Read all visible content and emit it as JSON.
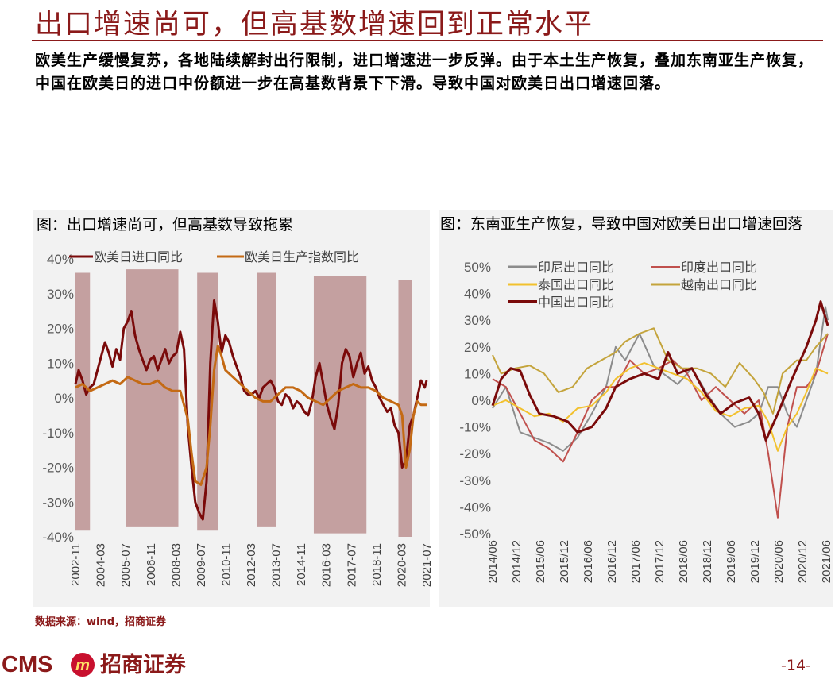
{
  "page": {
    "title": "出口增速尚可，但高基数增速回到正常水平",
    "summary": "欧美生产缓慢复苏，各地陆续解封出行限制，进口增速进一步反弹。由于本土生产恢复，叠加东南亚生产恢复，中国在欧美日的进口中份额进一步在高基数背景下下滑。导致中国对欧美日出口增速回落。",
    "source": "数据来源：wind，招商证券",
    "page_number": "-14-",
    "logo_text": "CMS",
    "logo_cn": "招商证券",
    "logo_badge": "m"
  },
  "colors": {
    "brand": "#8b1a1a",
    "panel_bg": "#f2f2f2",
    "shade": "#c4a0a0",
    "china_line": "#7a0a0a",
    "orange_line": "#c46a14",
    "indonesia": "#8c8c8c",
    "india": "#c0504d",
    "thailand": "#f2c12e",
    "vietnam": "#c4a43c"
  },
  "chart_data": [
    {
      "type": "line",
      "title": "图：出口增速尚可，但高基数导致拖累",
      "y_ticks": [
        "40%",
        "30%",
        "20%",
        "10%",
        "0%",
        "-10%",
        "-20%",
        "-30%",
        "-40%"
      ],
      "ylim": [
        -40,
        40
      ],
      "xlim": [
        2002.83,
        2021.5
      ],
      "x_ticks": [
        "2002-11",
        "2004-03",
        "2005-07",
        "2006-11",
        "2008-03",
        "2009-07",
        "2010-11",
        "2012-03",
        "2013-07",
        "2014-11",
        "2016-03",
        "2017-07",
        "2018-11",
        "2020-03",
        "2021-07"
      ],
      "shaded_periods": [
        [
          2002.83,
          2003.6,
          -38,
          36
        ],
        [
          2005.5,
          2008.3,
          -37,
          37
        ],
        [
          2009.3,
          2010.4,
          -38,
          36
        ],
        [
          2012.5,
          2013.5,
          -37,
          36
        ],
        [
          2015.5,
          2018.3,
          -39,
          35
        ],
        [
          2020.0,
          2020.7,
          -40,
          34
        ]
      ],
      "series": [
        {
          "name": "欧美日进口同比",
          "x": [
            2002.83,
            2003.0,
            2003.2,
            2003.4,
            2003.6,
            2003.8,
            2004.0,
            2004.2,
            2004.4,
            2004.6,
            2004.8,
            2005.0,
            2005.2,
            2005.4,
            2005.6,
            2005.8,
            2006.0,
            2006.2,
            2006.4,
            2006.6,
            2006.8,
            2007.0,
            2007.2,
            2007.4,
            2007.6,
            2007.8,
            2008.0,
            2008.2,
            2008.4,
            2008.6,
            2008.8,
            2009.0,
            2009.2,
            2009.4,
            2009.6,
            2009.8,
            2010.0,
            2010.2,
            2010.4,
            2010.6,
            2010.8,
            2011.0,
            2011.2,
            2011.4,
            2011.6,
            2011.8,
            2012.0,
            2012.2,
            2012.4,
            2012.6,
            2012.8,
            2013.0,
            2013.2,
            2013.4,
            2013.6,
            2013.8,
            2014.0,
            2014.2,
            2014.4,
            2014.6,
            2014.8,
            2015.0,
            2015.2,
            2015.4,
            2015.6,
            2015.8,
            2016.0,
            2016.2,
            2016.4,
            2016.6,
            2016.8,
            2017.0,
            2017.2,
            2017.4,
            2017.6,
            2017.8,
            2018.0,
            2018.2,
            2018.4,
            2018.6,
            2018.8,
            2019.0,
            2019.2,
            2019.4,
            2019.6,
            2019.8,
            2020.0,
            2020.2,
            2020.4,
            2020.6,
            2020.8,
            2021.0,
            2021.2,
            2021.4,
            2021.5
          ],
          "values": [
            4,
            8,
            5,
            1,
            3,
            4,
            8,
            12,
            16,
            13,
            9,
            14,
            11,
            20,
            22,
            25,
            18,
            14,
            11,
            8,
            11,
            12,
            8,
            11,
            14,
            10,
            12,
            13,
            19,
            14,
            -8,
            -20,
            -30,
            -33,
            -35,
            -24,
            10,
            28,
            22,
            13,
            18,
            16,
            12,
            9,
            6,
            2,
            1,
            1,
            2,
            0,
            3,
            4,
            5,
            3,
            -1,
            -2,
            1,
            0,
            -3,
            -1,
            -2,
            -4,
            -5,
            -1,
            6,
            10,
            4,
            -2,
            -6,
            -9,
            -2,
            10,
            14,
            12,
            6,
            10,
            13,
            7,
            9,
            5,
            3,
            0,
            -2,
            -4,
            -3,
            -8,
            -10,
            -20,
            -18,
            -8,
            -5,
            0,
            5,
            3,
            5
          ]
        },
        {
          "name": "欧美日生产指数同比",
          "x": [
            2002.83,
            2003.2,
            2003.6,
            2004.0,
            2004.4,
            2004.8,
            2005.2,
            2005.6,
            2006.0,
            2006.4,
            2006.8,
            2007.2,
            2007.6,
            2008.0,
            2008.4,
            2008.8,
            2009.0,
            2009.2,
            2009.5,
            2009.8,
            2010.0,
            2010.2,
            2010.4,
            2010.6,
            2010.8,
            2011.2,
            2011.6,
            2012.0,
            2012.4,
            2012.8,
            2013.2,
            2013.6,
            2014.0,
            2014.4,
            2014.8,
            2015.2,
            2015.6,
            2016.0,
            2016.4,
            2016.8,
            2017.2,
            2017.6,
            2018.0,
            2018.4,
            2018.8,
            2019.2,
            2019.6,
            2020.0,
            2020.2,
            2020.4,
            2020.6,
            2020.8,
            2021.0,
            2021.2,
            2021.5
          ],
          "values": [
            3,
            4,
            2,
            3,
            4,
            5,
            4,
            6,
            5,
            4,
            4,
            5,
            3,
            2,
            2,
            -6,
            -16,
            -24,
            -25,
            -20,
            -8,
            8,
            15,
            12,
            8,
            6,
            4,
            2,
            0,
            -1,
            -1,
            1,
            3,
            3,
            2,
            0,
            -1,
            -2,
            0,
            2,
            3,
            4,
            3,
            3,
            2,
            0,
            -1,
            -2,
            -5,
            -20,
            -15,
            -5,
            -1,
            -2,
            -2
          ]
        }
      ]
    },
    {
      "type": "line",
      "title": "图：东南亚生产恢复，导致中国对欧美日出口增速回落",
      "y_ticks": [
        "50%",
        "40%",
        "30%",
        "20%",
        "10%",
        "0%",
        "-10%",
        "-20%",
        "-30%",
        "-40%",
        "-50%"
      ],
      "ylim": [
        -50,
        50
      ],
      "xlim": [
        2014.42,
        2021.45
      ],
      "x_ticks": [
        "2014/06",
        "2014/12",
        "2015/06",
        "2015/12",
        "2016/06",
        "2016/12",
        "2017/06",
        "2017/12",
        "2018/06",
        "2018/12",
        "2019/06",
        "2019/12",
        "2020/06",
        "2020/12",
        "2021/06"
      ],
      "series": [
        {
          "name": "印尼出口同比",
          "x": [
            2014.42,
            2014.7,
            2015.0,
            2015.3,
            2015.6,
            2015.9,
            2016.2,
            2016.5,
            2016.8,
            2017.0,
            2017.2,
            2017.5,
            2017.8,
            2018.0,
            2018.3,
            2018.6,
            2018.9,
            2019.2,
            2019.5,
            2019.8,
            2020.0,
            2020.2,
            2020.4,
            2020.6,
            2020.8,
            2021.0,
            2021.2,
            2021.4,
            2021.45
          ],
          "values": [
            -3,
            5,
            -12,
            -14,
            -16,
            -19,
            -14,
            -5,
            5,
            20,
            15,
            25,
            13,
            10,
            6,
            12,
            3,
            -5,
            -10,
            -8,
            -5,
            5,
            5,
            -5,
            -10,
            0,
            10,
            35,
            30
          ]
        },
        {
          "name": "印度出口同比",
          "x": [
            2014.42,
            2014.7,
            2015.0,
            2015.3,
            2015.6,
            2015.9,
            2016.2,
            2016.5,
            2016.8,
            2017.0,
            2017.3,
            2017.6,
            2017.9,
            2018.2,
            2018.5,
            2018.8,
            2019.1,
            2019.4,
            2019.7,
            2020.0,
            2020.2,
            2020.4,
            2020.6,
            2020.8,
            2021.0,
            2021.2,
            2021.45
          ],
          "values": [
            8,
            5,
            -5,
            -15,
            -18,
            -23,
            -12,
            0,
            5,
            5,
            15,
            10,
            12,
            15,
            10,
            0,
            5,
            0,
            -5,
            0,
            -20,
            -44,
            -10,
            5,
            5,
            10,
            25
          ]
        },
        {
          "name": "泰国出口同比",
          "x": [
            2014.42,
            2014.7,
            2015.0,
            2015.3,
            2015.6,
            2015.9,
            2016.2,
            2016.5,
            2016.8,
            2017.0,
            2017.3,
            2017.6,
            2017.9,
            2018.2,
            2018.5,
            2018.8,
            2019.1,
            2019.4,
            2019.7,
            2020.0,
            2020.2,
            2020.4,
            2020.6,
            2020.8,
            2021.0,
            2021.2,
            2021.45
          ],
          "values": [
            -2,
            0,
            -3,
            -6,
            -5,
            -8,
            -3,
            -2,
            3,
            8,
            12,
            14,
            12,
            10,
            8,
            3,
            -4,
            -6,
            -3,
            -2,
            -8,
            -19,
            -10,
            -5,
            3,
            12,
            10
          ]
        },
        {
          "name": "越南出口同比",
          "x": [
            2014.42,
            2014.6,
            2014.9,
            2015.2,
            2015.5,
            2015.8,
            2016.1,
            2016.4,
            2016.7,
            2017.0,
            2017.2,
            2017.5,
            2017.8,
            2018.1,
            2018.4,
            2018.7,
            2019.0,
            2019.3,
            2019.6,
            2019.9,
            2020.1,
            2020.3,
            2020.5,
            2020.8,
            2021.0,
            2021.2,
            2021.45
          ],
          "values": [
            17,
            10,
            12,
            13,
            10,
            3,
            5,
            12,
            15,
            18,
            22,
            25,
            27,
            15,
            12,
            12,
            10,
            5,
            14,
            8,
            3,
            -5,
            10,
            15,
            15,
            20,
            25
          ]
        },
        {
          "name": "中国出口同比",
          "x": [
            2014.42,
            2014.6,
            2014.8,
            2015.0,
            2015.2,
            2015.4,
            2015.7,
            2016.0,
            2016.2,
            2016.5,
            2016.8,
            2017.0,
            2017.3,
            2017.6,
            2017.9,
            2018.1,
            2018.3,
            2018.6,
            2018.9,
            2019.2,
            2019.5,
            2019.8,
            2020.0,
            2020.15,
            2020.4,
            2020.7,
            2021.0,
            2021.2,
            2021.3,
            2021.45
          ],
          "values": [
            -2,
            8,
            12,
            11,
            2,
            -5,
            -6,
            -8,
            -12,
            -10,
            -3,
            5,
            8,
            10,
            8,
            18,
            10,
            12,
            2,
            -5,
            -1,
            1,
            -5,
            -15,
            -5,
            8,
            20,
            30,
            37,
            28
          ]
        }
      ]
    }
  ]
}
